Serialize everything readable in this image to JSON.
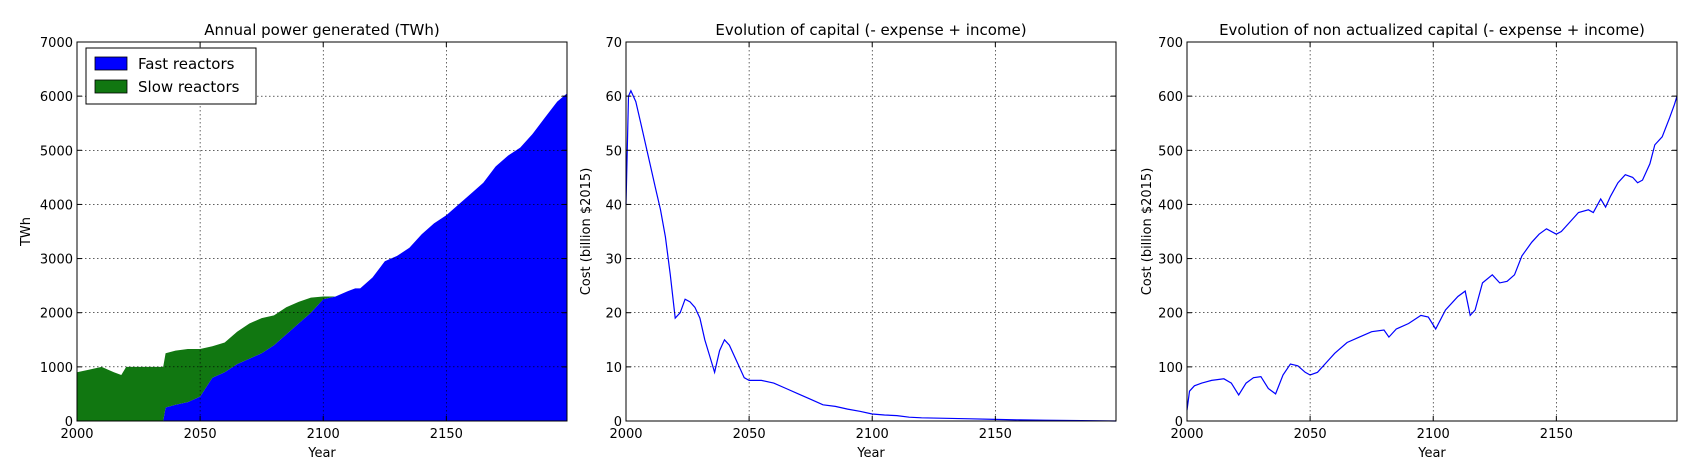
{
  "chart_data": [
    {
      "type": "area",
      "title": "Annual power generated (TWh)",
      "xlabel": "Year",
      "ylabel": "TWh",
      "xlim": [
        2000,
        2199
      ],
      "ylim": [
        0,
        7000
      ],
      "xticks": [
        2000,
        2050,
        2100,
        2150
      ],
      "yticks": [
        0,
        1000,
        2000,
        3000,
        4000,
        5000,
        6000,
        7000
      ],
      "grid": true,
      "legend": "top-left",
      "stacked": true,
      "x": [
        2000,
        2005,
        2010,
        2015,
        2018,
        2020,
        2025,
        2030,
        2035,
        2036,
        2040,
        2045,
        2050,
        2055,
        2060,
        2065,
        2070,
        2075,
        2080,
        2085,
        2090,
        2095,
        2100,
        2105,
        2110,
        2113,
        2115,
        2120,
        2125,
        2130,
        2135,
        2140,
        2145,
        2150,
        2155,
        2160,
        2165,
        2170,
        2175,
        2180,
        2185,
        2190,
        2195,
        2199
      ],
      "series": [
        {
          "name": "Fast reactors",
          "color": "#0000ff",
          "values": [
            0,
            0,
            0,
            0,
            0,
            0,
            0,
            0,
            0,
            250,
            300,
            350,
            450,
            800,
            900,
            1050,
            1150,
            1250,
            1400,
            1600,
            1800,
            2000,
            2250,
            2300,
            2400,
            2450,
            2450,
            2650,
            2950,
            3050,
            3200,
            3450,
            3650,
            3800,
            4000,
            4200,
            4400,
            4700,
            4900,
            5050,
            5300,
            5600,
            5900,
            6050
          ]
        },
        {
          "name": "Slow reactors",
          "color": "#117711",
          "values": [
            900,
            950,
            1000,
            900,
            850,
            1000,
            1000,
            1000,
            1000,
            1000,
            1000,
            980,
            880,
            580,
            550,
            600,
            650,
            650,
            550,
            500,
            400,
            280,
            50,
            0,
            0,
            0,
            0,
            0,
            0,
            0,
            0,
            0,
            0,
            0,
            0,
            0,
            0,
            0,
            0,
            0,
            0,
            0,
            0,
            0
          ]
        }
      ]
    },
    {
      "type": "line",
      "title": "Evolution of capital (- expense + income)",
      "xlabel": "Year",
      "ylabel": "Cost (billion $2015)",
      "xlim": [
        2000,
        2199
      ],
      "ylim": [
        0,
        70
      ],
      "xticks": [
        2000,
        2050,
        2100,
        2150
      ],
      "yticks": [
        0,
        10,
        20,
        30,
        40,
        50,
        60,
        70
      ],
      "grid": true,
      "series": [
        {
          "color": "#0000ff",
          "x": [
            2000,
            2001,
            2002,
            2004,
            2006,
            2008,
            2010,
            2012,
            2014,
            2016,
            2018,
            2020,
            2022,
            2024,
            2026,
            2028,
            2030,
            2032,
            2034,
            2036,
            2038,
            2040,
            2042,
            2044,
            2046,
            2048,
            2050,
            2055,
            2060,
            2065,
            2070,
            2075,
            2080,
            2085,
            2090,
            2095,
            2100,
            2105,
            2110,
            2115,
            2120,
            2130,
            2140,
            2150,
            2160,
            2170,
            2180,
            2190,
            2199
          ],
          "values": [
            40,
            60,
            61,
            59,
            55,
            51,
            47,
            43,
            39,
            34,
            27,
            19,
            20,
            22.5,
            22,
            21,
            19,
            15,
            12,
            9,
            13,
            15,
            14,
            12,
            10,
            8,
            7.5,
            7.5,
            7,
            6,
            5,
            4,
            3,
            2.7,
            2.2,
            1.8,
            1.3,
            1.1,
            1,
            0.7,
            0.6,
            0.5,
            0.4,
            0.3,
            0.2,
            0.15,
            0.1,
            0.05,
            0
          ]
        }
      ]
    },
    {
      "type": "line",
      "title": "Evolution of non actualized capital (- expense + income)",
      "xlabel": "Year",
      "ylabel": "Cost (billion $2015)",
      "xlim": [
        2000,
        2199
      ],
      "ylim": [
        0,
        700
      ],
      "xticks": [
        2000,
        2050,
        2100,
        2150
      ],
      "yticks": [
        0,
        100,
        200,
        300,
        400,
        500,
        600,
        700
      ],
      "grid": true,
      "series": [
        {
          "color": "#0000ff",
          "x": [
            2000,
            2001,
            2003,
            2006,
            2010,
            2015,
            2018,
            2021,
            2024,
            2027,
            2030,
            2033,
            2036,
            2039,
            2042,
            2045,
            2048,
            2050,
            2053,
            2057,
            2060,
            2065,
            2070,
            2075,
            2080,
            2082,
            2085,
            2090,
            2095,
            2098,
            2101,
            2105,
            2110,
            2113,
            2115,
            2117,
            2120,
            2124,
            2127,
            2130,
            2133,
            2136,
            2140,
            2143,
            2146,
            2150,
            2152,
            2155,
            2159,
            2163,
            2165,
            2168,
            2170,
            2172,
            2175,
            2178,
            2181,
            2183,
            2185,
            2188,
            2190,
            2193,
            2196,
            2198,
            2199
          ],
          "values": [
            20,
            55,
            65,
            70,
            75,
            78,
            70,
            48,
            70,
            80,
            82,
            60,
            50,
            85,
            105,
            102,
            90,
            85,
            90,
            110,
            125,
            145,
            155,
            165,
            168,
            155,
            170,
            180,
            195,
            192,
            170,
            205,
            230,
            240,
            195,
            205,
            255,
            270,
            255,
            258,
            270,
            305,
            330,
            345,
            355,
            345,
            350,
            365,
            385,
            390,
            385,
            410,
            395,
            415,
            440,
            455,
            450,
            440,
            445,
            475,
            510,
            525,
            560,
            585,
            600
          ]
        }
      ]
    }
  ]
}
